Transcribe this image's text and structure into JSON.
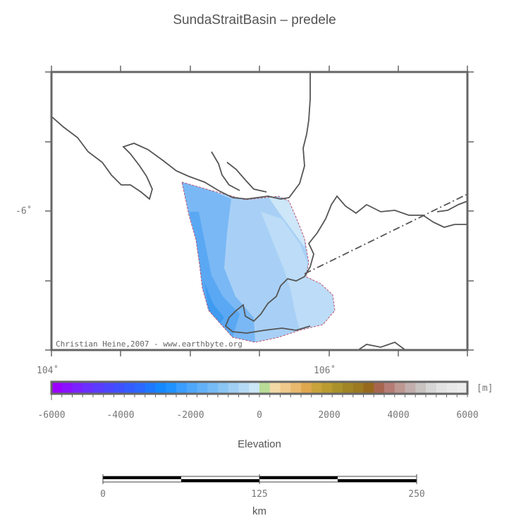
{
  "title": "SundaStraitBasin – predele",
  "credit": "Christian Heine,2007 - www.earthbyte.org",
  "map": {
    "lon_labels": [
      "104˚",
      "106˚"
    ],
    "lat_labels": [
      "-6˚"
    ]
  },
  "colorbar": {
    "unit": "[m]",
    "tick_labels": [
      "-6000",
      "-4000",
      "-2000",
      "0",
      "2000",
      "4000",
      "6000"
    ],
    "range": [
      -6000,
      6000
    ],
    "colors": [
      "#9b00ff",
      "#8a12ff",
      "#7a22ff",
      "#6a30ff",
      "#5b3bff",
      "#4c46ff",
      "#3f50ff",
      "#345cff",
      "#2a68ff",
      "#1e78ff",
      "#1488ff",
      "#1f92ff",
      "#3a9cff",
      "#4ea7fb",
      "#62b1f8",
      "#75bbf6",
      "#8ac5f4",
      "#a0cff4",
      "#b5daf4",
      "#cbe6f6",
      "#b8dc96",
      "#f2d9a6",
      "#efc98c",
      "#e9b96e",
      "#dfa84f",
      "#c9a33b",
      "#b99b30",
      "#aa912b",
      "#a08525",
      "#9c7a20",
      "#96691c",
      "#a7654f",
      "#b47c74",
      "#bd9792",
      "#c2aeac",
      "#c8c2c1",
      "#d6d6d6",
      "#e2e2e2",
      "#e8e8e8",
      "#ececec"
    ],
    "label": "Elevation"
  },
  "scalebar": {
    "tick_labels": [
      "0",
      "125",
      "250"
    ],
    "unit": "km"
  }
}
